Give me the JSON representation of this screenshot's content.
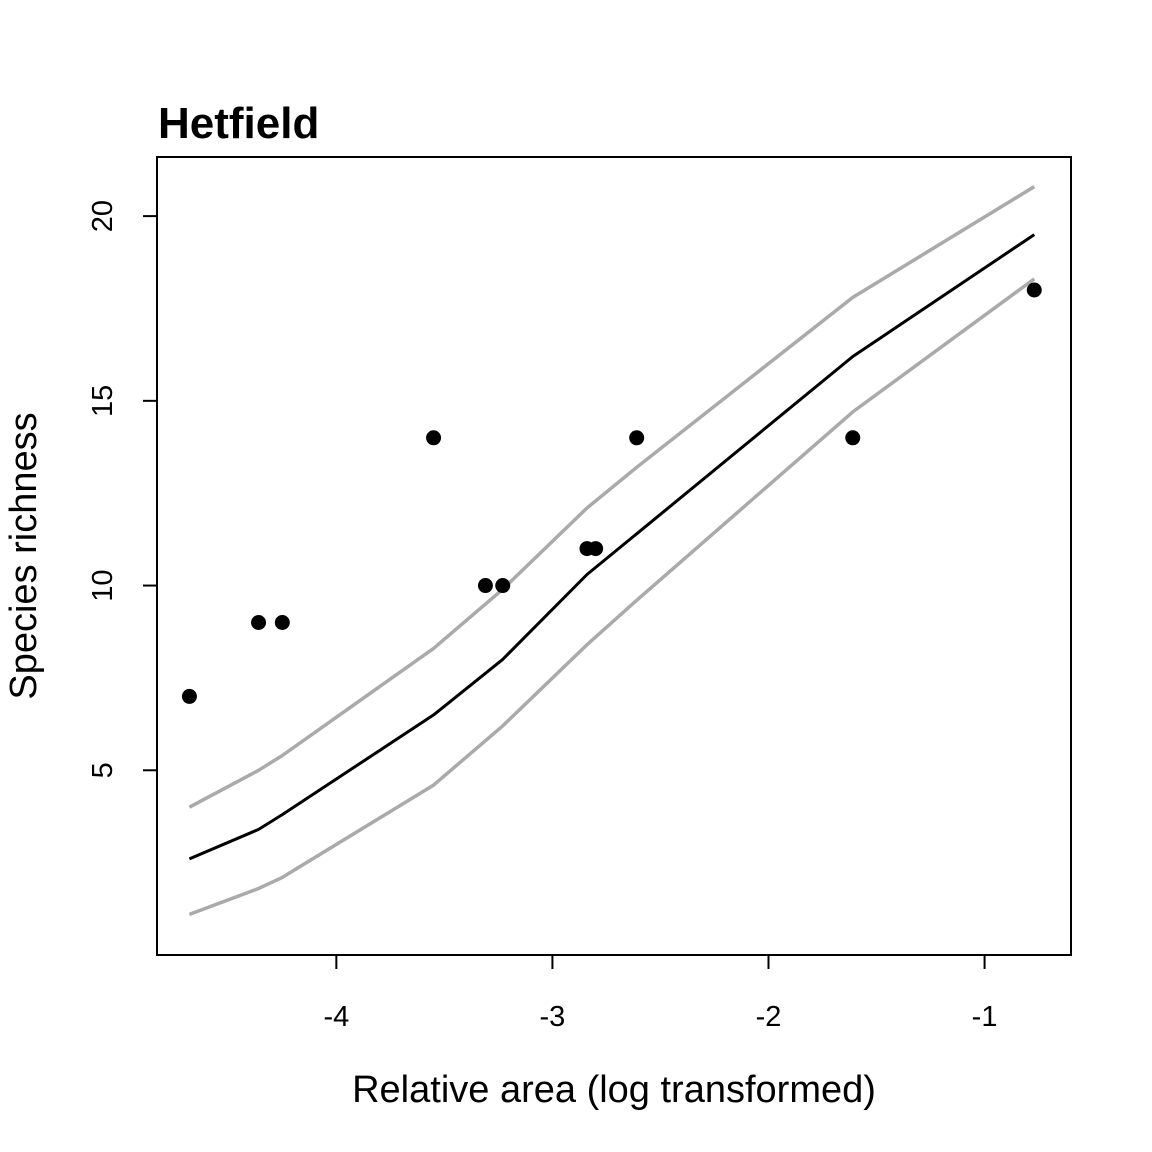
{
  "chart_data": {
    "type": "scatter",
    "title": "Hetfield",
    "xlabel": "Relative area (log transformed)",
    "ylabel": "Species richness",
    "xlim": [
      -4.83,
      -0.6
    ],
    "ylim": [
      0.0,
      21.6
    ],
    "xticks": [
      -4,
      -3,
      -2,
      -1
    ],
    "xtick_labels": [
      "-4",
      "-3",
      "-2",
      "-1"
    ],
    "yticks": [
      5,
      10,
      15,
      20
    ],
    "ytick_labels": [
      "5",
      "10",
      "15",
      "20"
    ],
    "grid": false,
    "legend": "none",
    "points": {
      "name": "observed",
      "color": "#000000",
      "x": [
        -4.68,
        -4.36,
        -4.25,
        -3.55,
        -3.31,
        -3.23,
        -2.84,
        -2.8,
        -2.61,
        -1.61,
        -0.77
      ],
      "y": [
        7,
        9,
        9,
        14,
        10,
        10,
        11,
        11,
        14,
        14,
        18
      ]
    },
    "fit": {
      "color": "#000000",
      "x": [
        -4.68,
        -4.36,
        -4.25,
        -3.55,
        -3.23,
        -2.84,
        -2.61,
        -1.61,
        -0.77
      ],
      "y": [
        2.6,
        3.4,
        3.8,
        6.5,
        8.0,
        10.3,
        11.4,
        16.2,
        19.5
      ]
    },
    "upper_band": {
      "color": "#aaaaaa",
      "x": [
        -4.68,
        -4.36,
        -4.25,
        -3.55,
        -3.23,
        -2.84,
        -2.61,
        -1.61,
        -0.77
      ],
      "y": [
        4.0,
        5.0,
        5.4,
        8.3,
        9.9,
        12.1,
        13.2,
        17.8,
        20.8
      ]
    },
    "lower_band": {
      "color": "#aaaaaa",
      "x": [
        -4.68,
        -4.36,
        -4.25,
        -3.55,
        -3.23,
        -2.84,
        -2.61,
        -1.61,
        -0.77
      ],
      "y": [
        1.1,
        1.8,
        2.1,
        4.6,
        6.2,
        8.4,
        9.6,
        14.7,
        18.3
      ]
    }
  }
}
